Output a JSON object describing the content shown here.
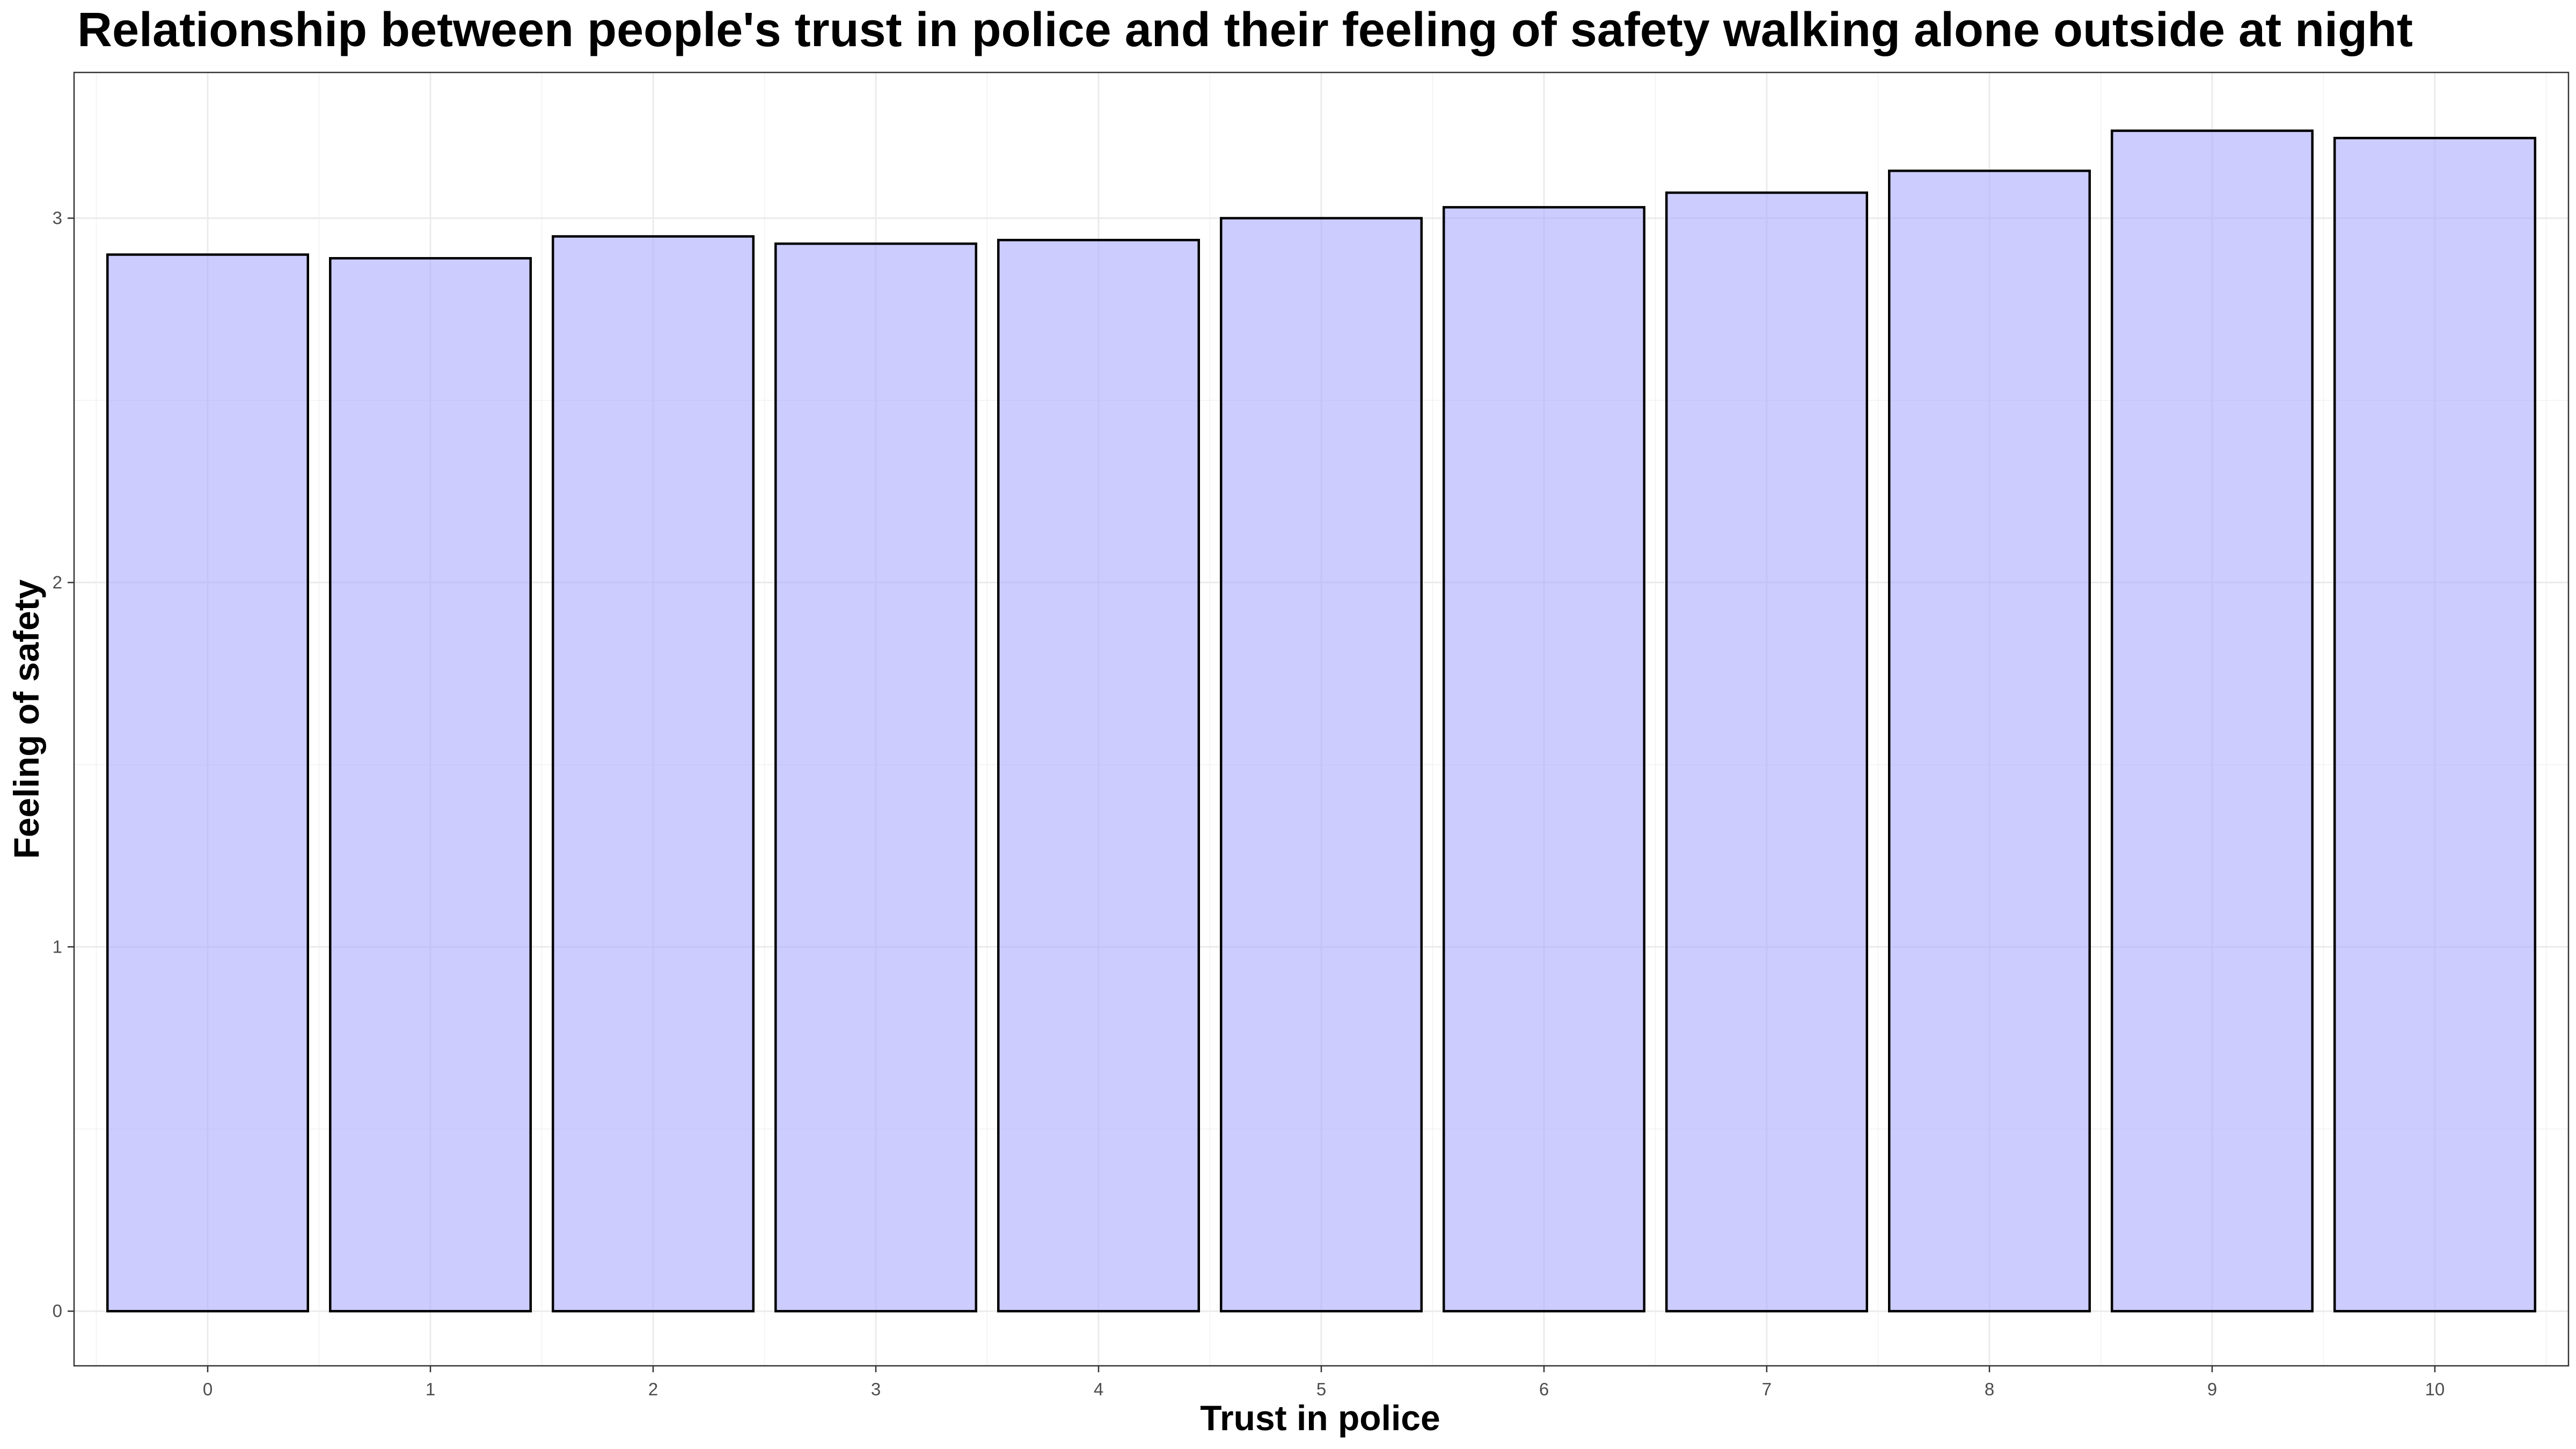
{
  "chart_data": {
    "type": "bar",
    "title": "Relationship between people's trust in police and their feeling of safety walking alone outside at night",
    "xlabel": "Trust in police",
    "ylabel": "Feeling of safety",
    "categories": [
      "0",
      "1",
      "2",
      "3",
      "4",
      "5",
      "6",
      "7",
      "8",
      "9",
      "10"
    ],
    "values": [
      2.9,
      2.89,
      2.95,
      2.93,
      2.94,
      3.0,
      3.03,
      3.07,
      3.13,
      3.24,
      3.22
    ],
    "ylim": [
      -0.15,
      3.4
    ],
    "yticks": [
      "0",
      "1",
      "2",
      "3"
    ],
    "grid": true,
    "legend": "none",
    "colors": {
      "bar_fill": "#aaaaff",
      "bar_stroke": "#000000",
      "panel_border": "#333333",
      "grid": "#ebebeb"
    }
  }
}
